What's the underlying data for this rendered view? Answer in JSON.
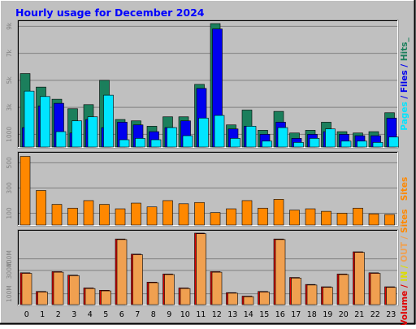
{
  "colors": {
    "background": "#c0c0c0",
    "plot_background": "#c0c0c0",
    "frame": "#808080",
    "grid": "#808080",
    "title_color": "#0000ff",
    "hits": "#1b7f5c",
    "files": "#0000ee",
    "pages": "#00e5ff",
    "sites": "#ff8800",
    "volume": "#e00000",
    "in": "#dddd00",
    "out": "#f0a050"
  },
  "chart_data": {
    "type": "bar",
    "title": "Hourly usage for December 2024",
    "categories": [
      "0",
      "1",
      "2",
      "3",
      "4",
      "5",
      "6",
      "7",
      "8",
      "9",
      "10",
      "11",
      "12",
      "13",
      "14",
      "15",
      "16",
      "17",
      "18",
      "19",
      "20",
      "21",
      "22",
      "23"
    ],
    "panels": [
      {
        "id": "hits-files-pages",
        "legend": [
          {
            "text": "Pages",
            "color_key": "pages"
          },
          {
            "text": " / ",
            "color_key": "files"
          },
          {
            "text": "Files",
            "color_key": "files"
          },
          {
            "text": " / ",
            "color_key": "files"
          },
          {
            "text": "Hits",
            "color_key": "hits"
          },
          {
            "text": "_",
            "color_key": "hits"
          }
        ],
        "ylim": [
          0,
          9200
        ],
        "tick_labels": [
          "1000",
          "3k",
          "5k",
          "7k",
          "9k"
        ],
        "tick_values": [
          1000,
          3000,
          5000,
          7000,
          9000
        ],
        "series": [
          {
            "name": "Hits",
            "color_key": "hits",
            "values": [
              5500,
              4500,
              3600,
              2900,
              3200,
              5000,
              2100,
              2000,
              1600,
              2300,
              2300,
              4700,
              9200,
              1700,
              2800,
              1300,
              2700,
              1100,
              1300,
              1900,
              1200,
              1100,
              1200,
              2600
            ]
          },
          {
            "name": "Files",
            "color_key": "files",
            "values": [
              1500,
              3100,
              3300,
              1100,
              2100,
              1500,
              1900,
              1700,
              1200,
              1500,
              2000,
              4400,
              8800,
              1400,
              1600,
              1000,
              1900,
              700,
              1000,
              1200,
              1000,
              900,
              900,
              2200
            ]
          },
          {
            "name": "Pages",
            "color_key": "pages",
            "values": [
              4200,
              3800,
              1200,
              2000,
              2300,
              3900,
              600,
              700,
              600,
              1500,
              900,
              2200,
              2400,
              700,
              1600,
              500,
              1500,
              400,
              700,
              1400,
              500,
              500,
              400,
              800
            ]
          }
        ]
      },
      {
        "id": "sites",
        "legend": [
          {
            "text": "Sites",
            "color_key": "sites"
          }
        ],
        "ylim": [
          0,
          560
        ],
        "tick_labels": [
          "100",
          "300",
          "500"
        ],
        "tick_values": [
          100,
          300,
          500
        ],
        "series": [
          {
            "name": "Sites",
            "color_key": "sites",
            "values": [
              550,
              280,
              170,
              140,
              200,
              170,
              135,
              180,
              150,
              200,
              175,
              185,
              105,
              135,
              200,
              140,
              210,
              125,
              135,
              115,
              100,
              140,
              95,
              90
            ]
          }
        ]
      },
      {
        "id": "volume",
        "legend": [
          {
            "text": "Volume",
            "color_key": "volume"
          },
          {
            "text": " / ",
            "color_key": "volume"
          },
          {
            "text": "IN",
            "color_key": "in"
          },
          {
            "text": " / ",
            "color_key": "in"
          },
          {
            "text": "OUT",
            "color_key": "out"
          },
          {
            "text": " / ",
            "color_key": "out"
          },
          {
            "text": "Sites",
            "color_key": "sites"
          }
        ],
        "ylim": [
          0,
          620
        ],
        "tick_labels": [
          "100M",
          "300M",
          "400M"
        ],
        "tick_values": [
          100,
          300,
          400
        ],
        "series": [
          {
            "name": "Volume",
            "color_key": "volume",
            "values": [
              280,
              120,
              290,
              260,
              150,
              130,
              570,
              440,
              200,
              270,
              150,
              620,
              290,
              110,
              80,
              120,
              570,
              240,
              180,
              160,
              270,
              460,
              280,
              160
            ]
          },
          {
            "name": "OUT",
            "color_key": "out",
            "values": [
              275,
              115,
              285,
              255,
              145,
              125,
              565,
              435,
              195,
              265,
              145,
              615,
              285,
              105,
              75,
              115,
              565,
              235,
              175,
              155,
              265,
              455,
              275,
              155
            ]
          }
        ]
      }
    ]
  }
}
